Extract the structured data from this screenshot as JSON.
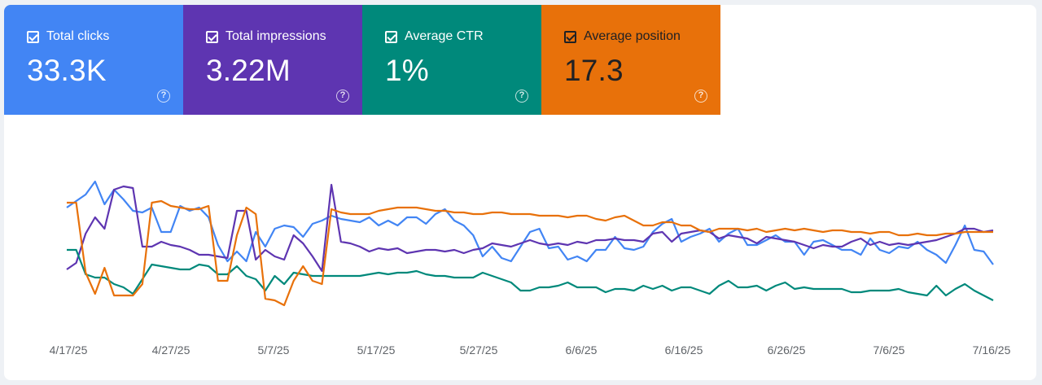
{
  "cards": [
    {
      "label": "Total clicks",
      "value": "33.3K",
      "color": "#4285f4",
      "help_icon": "help-icon"
    },
    {
      "label": "Total impressions",
      "value": "3.22M",
      "color": "#5e35b1",
      "help_icon": "help-icon"
    },
    {
      "label": "Average CTR",
      "value": "1%",
      "color": "#00897b",
      "help_icon": "help-icon"
    },
    {
      "label": "Average position",
      "value": "17.3",
      "color": "#e8710a",
      "help_icon": "help-icon"
    }
  ],
  "chart_data": {
    "type": "line",
    "x_tick_labels": [
      "4/17/25",
      "4/27/25",
      "5/7/25",
      "5/17/25",
      "5/27/25",
      "6/6/25",
      "6/16/25",
      "6/26/25",
      "7/6/25",
      "7/16/25"
    ],
    "grid": false,
    "y_axis_labels_shown": false,
    "series": [
      {
        "name": "Total clicks",
        "color": "#4285f4",
        "values": [
          0.68,
          0.72,
          0.76,
          0.84,
          0.7,
          0.79,
          0.73,
          0.66,
          0.65,
          0.68,
          0.53,
          0.53,
          0.69,
          0.66,
          0.68,
          0.62,
          0.45,
          0.35,
          0.41,
          0.35,
          0.53,
          0.44,
          0.55,
          0.57,
          0.56,
          0.5,
          0.58,
          0.6,
          0.63,
          0.61,
          0.6,
          0.59,
          0.62,
          0.57,
          0.6,
          0.57,
          0.62,
          0.62,
          0.58,
          0.64,
          0.67,
          0.6,
          0.57,
          0.51,
          0.38,
          0.44,
          0.37,
          0.35,
          0.44,
          0.53,
          0.55,
          0.43,
          0.44,
          0.36,
          0.38,
          0.35,
          0.42,
          0.42,
          0.5,
          0.43,
          0.42,
          0.44,
          0.53,
          0.58,
          0.61,
          0.47,
          0.5,
          0.52,
          0.55,
          0.47,
          0.52,
          0.55,
          0.45,
          0.45,
          0.48,
          0.51,
          0.47,
          0.47,
          0.39,
          0.47,
          0.48,
          0.45,
          0.42,
          0.42,
          0.39,
          0.49,
          0.42,
          0.4,
          0.44,
          0.43,
          0.47,
          0.42,
          0.39,
          0.34,
          0.45,
          0.57,
          0.42,
          0.41,
          0.33
        ]
      },
      {
        "name": "Total impressions",
        "color": "#5e35b1",
        "values": [
          0.3,
          0.34,
          0.52,
          0.62,
          0.55,
          0.79,
          0.81,
          0.8,
          0.44,
          0.44,
          0.47,
          0.45,
          0.44,
          0.42,
          0.39,
          0.39,
          0.38,
          0.37,
          0.66,
          0.66,
          0.36,
          0.42,
          0.38,
          0.36,
          0.51,
          0.46,
          0.38,
          0.29,
          0.82,
          0.47,
          0.46,
          0.44,
          0.41,
          0.43,
          0.42,
          0.43,
          0.4,
          0.41,
          0.42,
          0.42,
          0.41,
          0.42,
          0.4,
          0.42,
          0.43,
          0.46,
          0.45,
          0.44,
          0.46,
          0.48,
          0.46,
          0.45,
          0.46,
          0.45,
          0.47,
          0.46,
          0.48,
          0.48,
          0.49,
          0.48,
          0.48,
          0.47,
          0.52,
          0.53,
          0.47,
          0.52,
          0.53,
          0.54,
          0.53,
          0.49,
          0.51,
          0.5,
          0.49,
          0.46,
          0.5,
          0.49,
          0.48,
          0.47,
          0.45,
          0.43,
          0.45,
          0.44,
          0.44,
          0.47,
          0.49,
          0.45,
          0.47,
          0.45,
          0.46,
          0.45,
          0.46,
          0.47,
          0.48,
          0.5,
          0.52,
          0.55,
          0.55,
          0.53,
          0.54
        ]
      },
      {
        "name": "Average CTR",
        "color": "#00897b",
        "values": [
          0.42,
          0.42,
          0.27,
          0.25,
          0.25,
          0.21,
          0.19,
          0.15,
          0.24,
          0.33,
          0.32,
          0.31,
          0.3,
          0.3,
          0.33,
          0.32,
          0.27,
          0.27,
          0.32,
          0.26,
          0.24,
          0.17,
          0.26,
          0.21,
          0.28,
          0.27,
          0.26,
          0.26,
          0.26,
          0.26,
          0.26,
          0.26,
          0.27,
          0.28,
          0.27,
          0.28,
          0.28,
          0.29,
          0.27,
          0.26,
          0.26,
          0.25,
          0.25,
          0.25,
          0.28,
          0.26,
          0.24,
          0.22,
          0.17,
          0.17,
          0.19,
          0.19,
          0.2,
          0.22,
          0.19,
          0.19,
          0.19,
          0.16,
          0.18,
          0.18,
          0.17,
          0.2,
          0.18,
          0.2,
          0.17,
          0.19,
          0.19,
          0.17,
          0.15,
          0.2,
          0.23,
          0.19,
          0.19,
          0.2,
          0.17,
          0.2,
          0.22,
          0.18,
          0.19,
          0.18,
          0.18,
          0.18,
          0.18,
          0.16,
          0.16,
          0.17,
          0.17,
          0.17,
          0.18,
          0.16,
          0.15,
          0.14,
          0.2,
          0.14,
          0.18,
          0.21,
          0.17,
          0.14,
          0.11
        ]
      },
      {
        "name": "Average position",
        "color": "#e8710a",
        "values": [
          0.71,
          0.71,
          0.28,
          0.15,
          0.31,
          0.14,
          0.14,
          0.14,
          0.21,
          0.71,
          0.72,
          0.69,
          0.68,
          0.67,
          0.67,
          0.69,
          0.23,
          0.23,
          0.51,
          0.68,
          0.64,
          0.12,
          0.11,
          0.08,
          0.23,
          0.32,
          0.23,
          0.21,
          0.67,
          0.65,
          0.64,
          0.64,
          0.64,
          0.66,
          0.67,
          0.68,
          0.68,
          0.68,
          0.67,
          0.66,
          0.66,
          0.65,
          0.65,
          0.64,
          0.64,
          0.65,
          0.65,
          0.64,
          0.64,
          0.64,
          0.63,
          0.63,
          0.63,
          0.62,
          0.63,
          0.63,
          0.61,
          0.6,
          0.62,
          0.63,
          0.6,
          0.57,
          0.57,
          0.59,
          0.59,
          0.57,
          0.57,
          0.54,
          0.53,
          0.55,
          0.55,
          0.55,
          0.54,
          0.55,
          0.53,
          0.54,
          0.55,
          0.54,
          0.55,
          0.54,
          0.53,
          0.54,
          0.54,
          0.53,
          0.53,
          0.52,
          0.53,
          0.53,
          0.51,
          0.51,
          0.52,
          0.51,
          0.51,
          0.52,
          0.52,
          0.53,
          0.53,
          0.53,
          0.53
        ]
      }
    ]
  }
}
